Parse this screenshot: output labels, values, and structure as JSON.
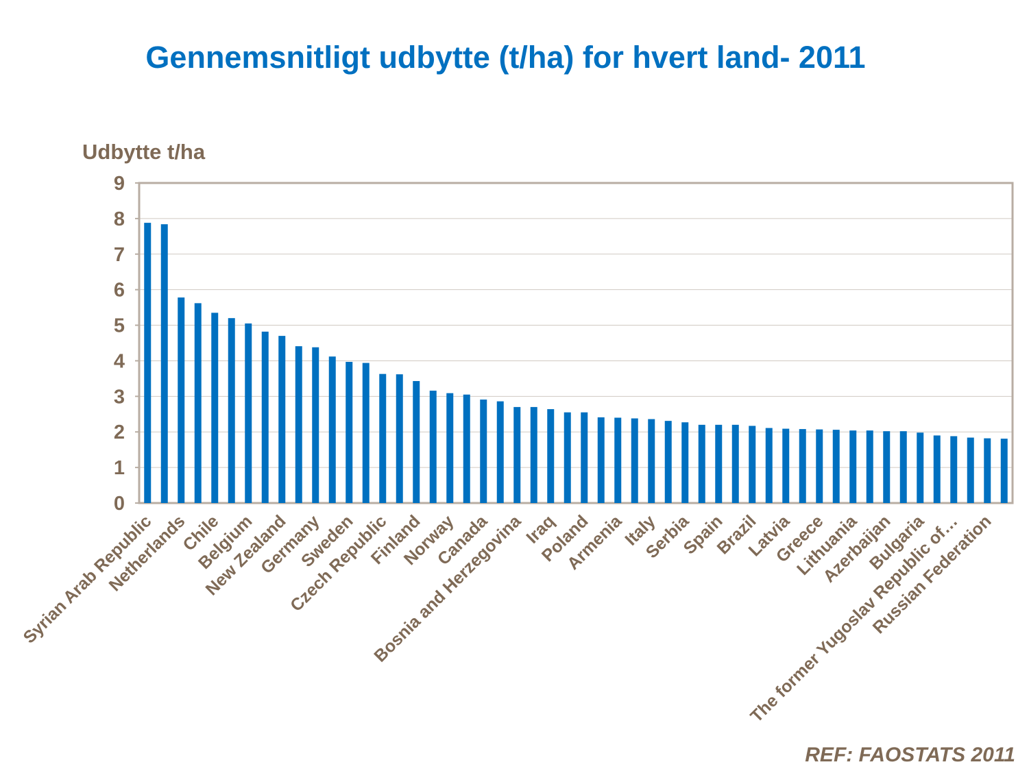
{
  "colors": {
    "title": "#0070C0",
    "bar": "#0070C0",
    "axis_text": "#7F6A56",
    "plot_border": "#B8ADA3",
    "gridline": "#D0C9C2"
  },
  "source_note": "REF: FAOSTATS 2011",
  "chart_data": {
    "type": "bar",
    "title": "Gennemsnitligt udbytte (t/ha) for hvert land- 2011",
    "xlabel": "",
    "ylabel": "Udbytte t/ha",
    "ylim": [
      0,
      9
    ],
    "yticks": [
      "0",
      "1",
      "2",
      "3",
      "4",
      "5",
      "6",
      "7",
      "8",
      "9"
    ],
    "grid": true,
    "categories": [
      "Syrian Arab Republic",
      "",
      "Netherlands",
      "",
      "Chile",
      "",
      "Belgium",
      "",
      "New Zealand",
      "",
      "Germany",
      "",
      "Sweden",
      "",
      "Czech Republic",
      "",
      "Finland",
      "",
      "Norway",
      "",
      "Canada",
      "",
      "Bosnia and Herzegovina",
      "",
      "Iraq",
      "",
      "Poland",
      "",
      "Armenia",
      "",
      "Italy",
      "",
      "Serbia",
      "",
      "Spain",
      "",
      "Brazil",
      "",
      "Latvia",
      "",
      "Greece",
      "",
      "Lithuania",
      "",
      "Azerbaijan",
      "",
      "Bulgaria",
      "",
      "The former Yugoslav Republic of…",
      "",
      "Russian Federation",
      ""
    ],
    "values": [
      7.88,
      7.84,
      5.78,
      5.62,
      5.35,
      5.2,
      5.05,
      4.82,
      4.7,
      4.41,
      4.38,
      4.12,
      3.97,
      3.94,
      3.63,
      3.62,
      3.43,
      3.16,
      3.09,
      3.05,
      2.91,
      2.86,
      2.7,
      2.7,
      2.64,
      2.55,
      2.55,
      2.41,
      2.4,
      2.38,
      2.36,
      2.31,
      2.27,
      2.2,
      2.2,
      2.2,
      2.17,
      2.11,
      2.09,
      2.08,
      2.07,
      2.06,
      2.04,
      2.04,
      2.02,
      2.02,
      1.98,
      1.9,
      1.88,
      1.84,
      1.82,
      1.81
    ]
  }
}
